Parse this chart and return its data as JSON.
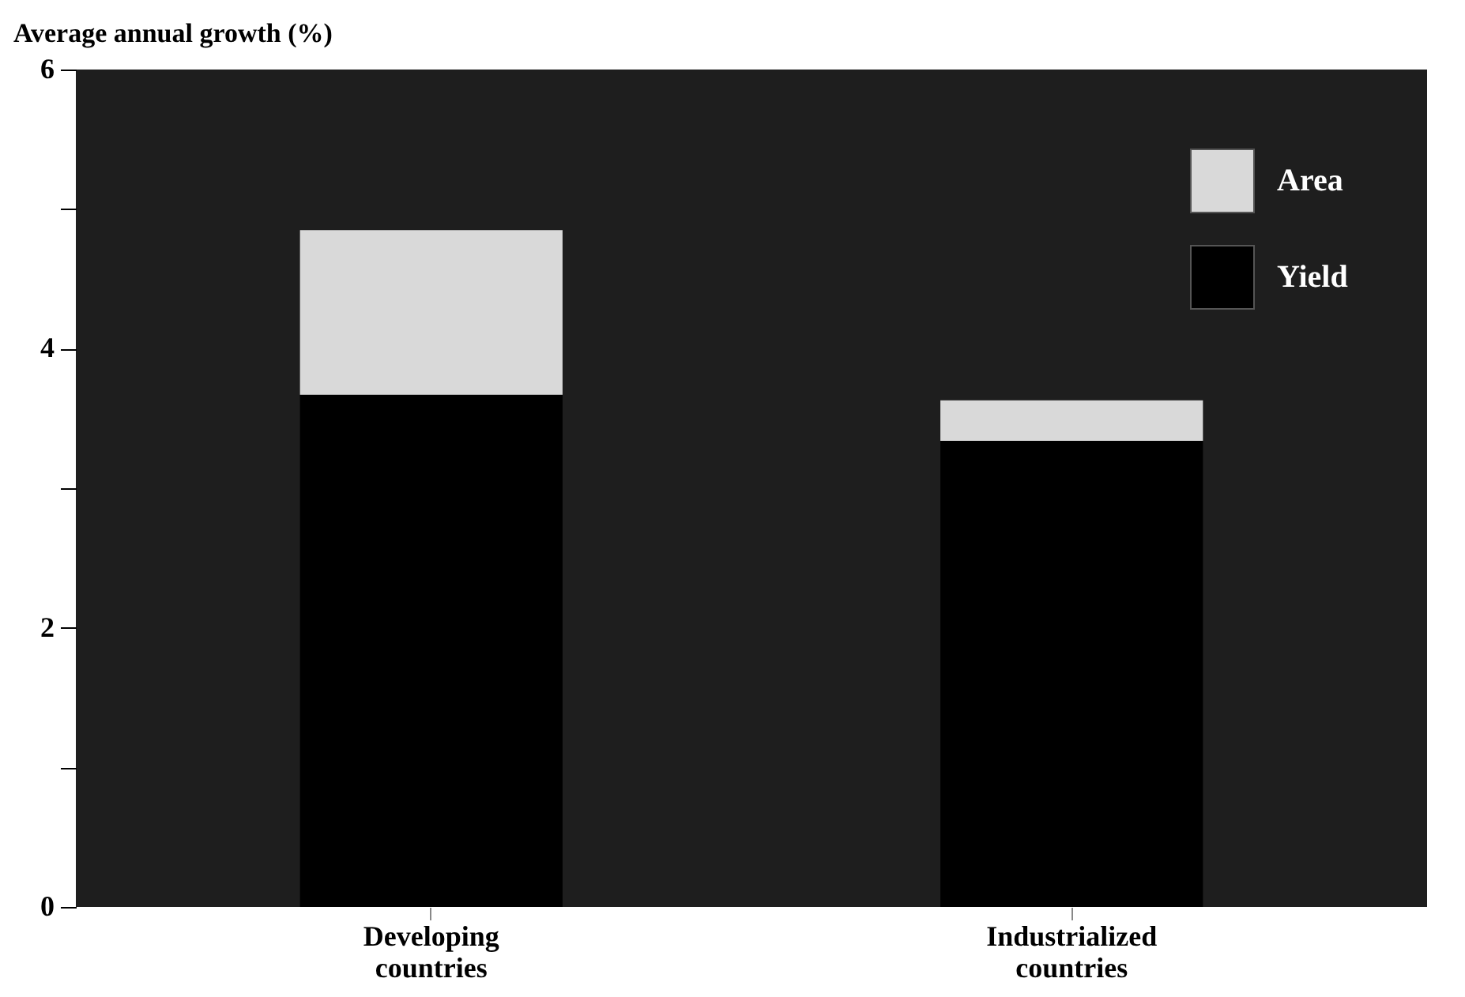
{
  "chart_data": {
    "type": "bar",
    "ylabel": "Average annual growth (%)",
    "categories": [
      "Developing countries",
      "Industrialized countries"
    ],
    "stacked": true,
    "series": [
      {
        "name": "Yield",
        "color": "#000000",
        "values": [
          3.67,
          3.34
        ]
      },
      {
        "name": "Area",
        "color": "#d9d9d9",
        "values": [
          1.18,
          0.29
        ]
      }
    ],
    "ylim": [
      0,
      6
    ],
    "yticks": [
      0,
      {
        "value": 1,
        "label": null
      },
      2,
      {
        "value": 3,
        "label": null
      },
      4,
      {
        "value": 5,
        "label": null
      },
      6
    ],
    "legend": "top right"
  }
}
